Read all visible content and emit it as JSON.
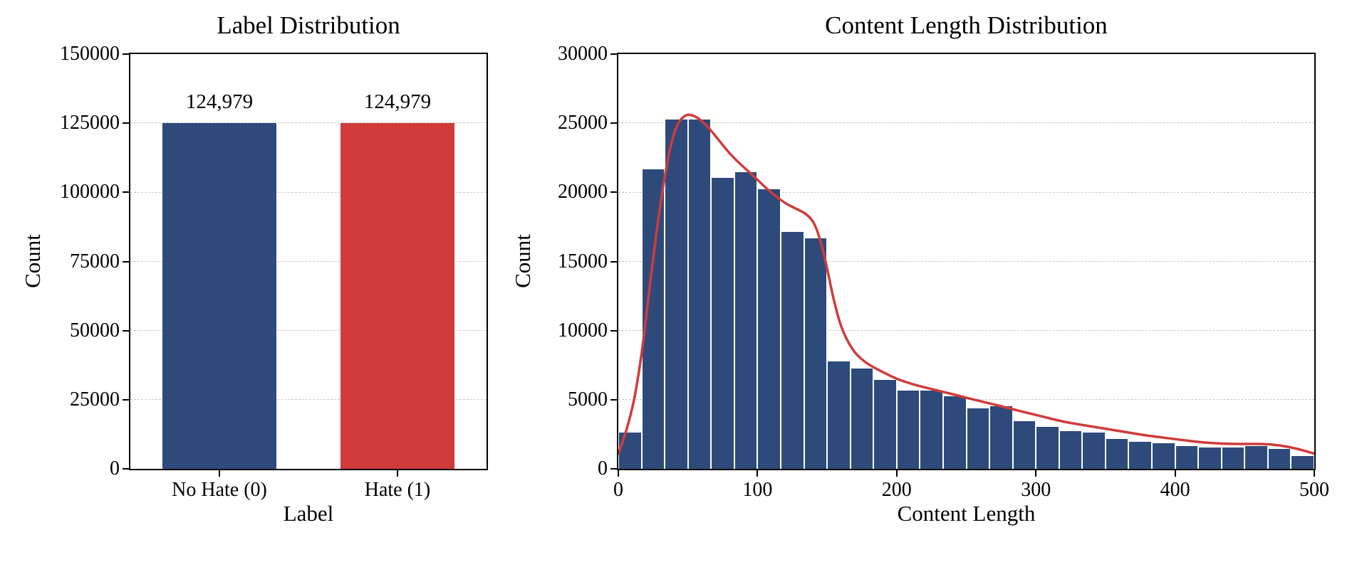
{
  "style": {
    "grid_color": "#c8c8c8",
    "axis_color": "#000000",
    "text_color": "#000000"
  },
  "chart_data": [
    {
      "type": "bar",
      "title": "Label Distribution",
      "xlabel": "Label",
      "ylabel": "Count",
      "categories": [
        "No Hate (0)",
        "Hate (1)"
      ],
      "values": [
        124979,
        124979
      ],
      "value_labels": [
        "124,979",
        "124,979"
      ],
      "bar_colors": [
        "#2e4a7a",
        "#d03b3b"
      ],
      "ylim": [
        0,
        150000
      ],
      "yticks": [
        0,
        25000,
        50000,
        75000,
        100000,
        125000,
        150000
      ],
      "grid": "dashed-horizontal",
      "legend": "none"
    },
    {
      "type": "histogram",
      "title": "Content Length Distribution",
      "xlabel": "Content Length",
      "ylabel": "Count",
      "xlim": [
        0,
        500
      ],
      "ylim": [
        0,
        30000
      ],
      "xticks": [
        0,
        100,
        200,
        300,
        400,
        500
      ],
      "yticks": [
        0,
        5000,
        10000,
        15000,
        20000,
        25000,
        30000
      ],
      "bin_start": 0,
      "bin_width": 16.667,
      "bar_color": "#2e4a7a",
      "bar_edge_color": "#ffffff",
      "values": [
        2700,
        21700,
        25300,
        25300,
        21100,
        21500,
        20300,
        17200,
        16700,
        7800,
        7300,
        6500,
        5700,
        5700,
        5300,
        4400,
        4600,
        3500,
        3100,
        2800,
        2700,
        2200,
        2000,
        1900,
        1700,
        1600,
        1600,
        1700,
        1500,
        1000
      ],
      "kde_line": {
        "color": "#d03b3b",
        "points": [
          [
            0,
            1100
          ],
          [
            8,
            3200
          ],
          [
            16,
            7500
          ],
          [
            24,
            14500
          ],
          [
            32,
            20500
          ],
          [
            40,
            24600
          ],
          [
            48,
            25700
          ],
          [
            56,
            25500
          ],
          [
            64,
            24800
          ],
          [
            72,
            23800
          ],
          [
            80,
            22800
          ],
          [
            88,
            22000
          ],
          [
            96,
            21300
          ],
          [
            104,
            20500
          ],
          [
            112,
            19800
          ],
          [
            120,
            19200
          ],
          [
            128,
            18800
          ],
          [
            136,
            18400
          ],
          [
            142,
            17600
          ],
          [
            148,
            15500
          ],
          [
            154,
            12500
          ],
          [
            160,
            10200
          ],
          [
            168,
            8600
          ],
          [
            176,
            7800
          ],
          [
            184,
            7300
          ],
          [
            192,
            6900
          ],
          [
            200,
            6500
          ],
          [
            212,
            6100
          ],
          [
            224,
            5800
          ],
          [
            236,
            5500
          ],
          [
            248,
            5200
          ],
          [
            260,
            4900
          ],
          [
            272,
            4600
          ],
          [
            284,
            4300
          ],
          [
            296,
            4000
          ],
          [
            308,
            3700
          ],
          [
            320,
            3400
          ],
          [
            332,
            3200
          ],
          [
            344,
            3000
          ],
          [
            356,
            2800
          ],
          [
            368,
            2600
          ],
          [
            380,
            2400
          ],
          [
            392,
            2250
          ],
          [
            404,
            2100
          ],
          [
            416,
            1950
          ],
          [
            428,
            1850
          ],
          [
            440,
            1800
          ],
          [
            452,
            1800
          ],
          [
            464,
            1800
          ],
          [
            476,
            1700
          ],
          [
            488,
            1450
          ],
          [
            500,
            1100
          ]
        ]
      },
      "grid": "dashed-horizontal",
      "legend": "none"
    }
  ]
}
